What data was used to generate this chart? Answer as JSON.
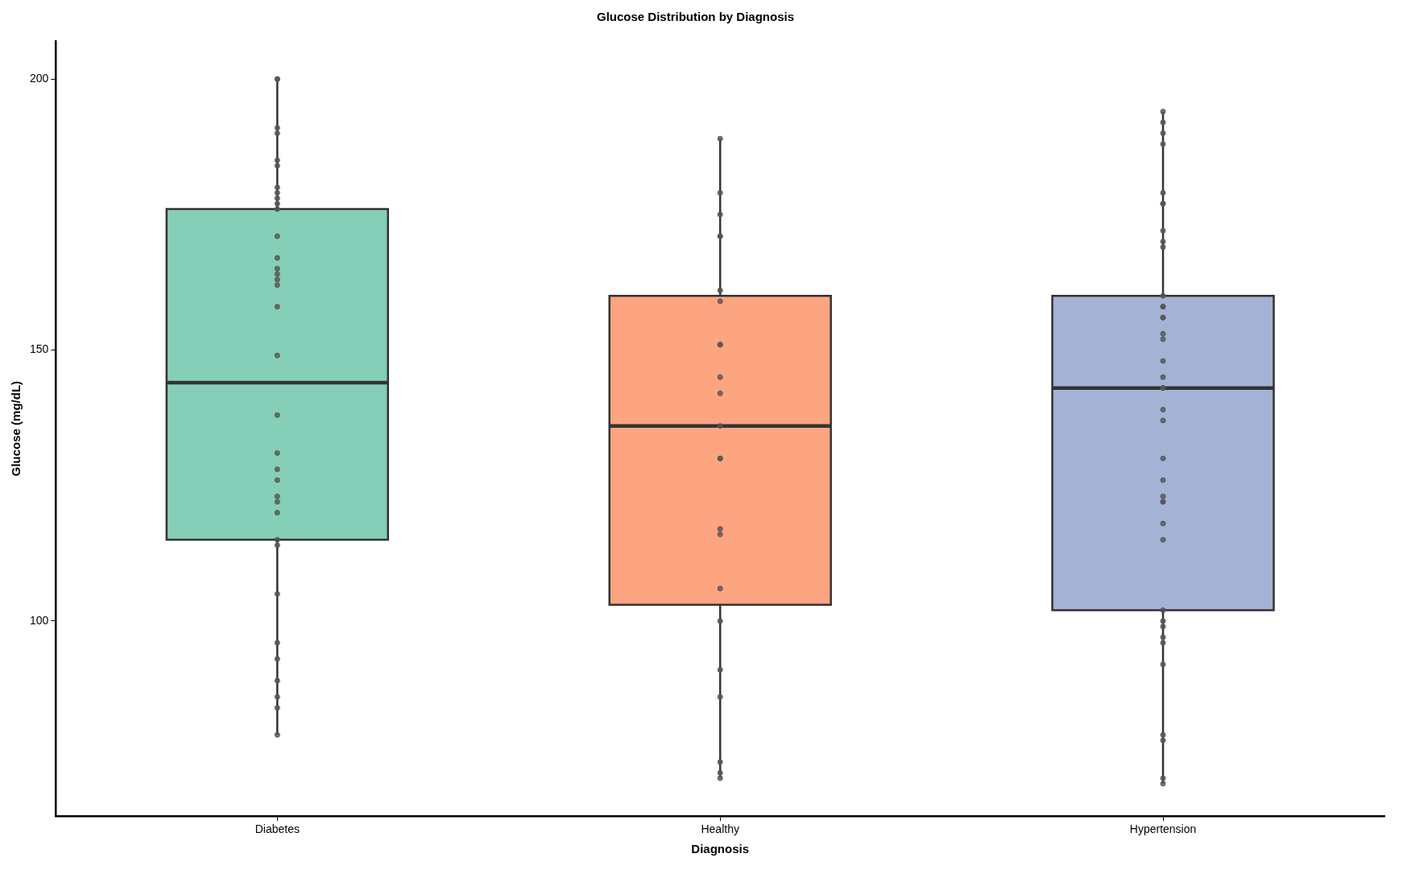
{
  "chart_data": {
    "type": "box",
    "title": "Glucose Distribution by Diagnosis",
    "xlabel": "Diagnosis",
    "ylabel": "Glucose (mg/dL)",
    "categories": [
      "Diabetes",
      "Healthy",
      "Hypertension"
    ],
    "colors": [
      "#85ceb7",
      "#fda481",
      "#a4b3d5"
    ],
    "boxes": [
      {
        "low": 79,
        "q1": 115,
        "median": 144,
        "q3": 176,
        "high": 200
      },
      {
        "low": 71,
        "q1": 103,
        "median": 136,
        "q3": 160,
        "high": 189
      },
      {
        "low": 70,
        "q1": 102,
        "median": 143,
        "q3": 160,
        "high": 194
      }
    ],
    "ylim": [
      64,
      207
    ],
    "yticks": [
      100,
      150,
      200
    ],
    "series": [
      {
        "type": "scatter",
        "color": "#555555",
        "marker": "circle",
        "x": [
          "Diabetes",
          "Diabetes",
          "Diabetes",
          "Diabetes",
          "Diabetes",
          "Diabetes",
          "Diabetes",
          "Diabetes",
          "Diabetes",
          "Diabetes",
          "Diabetes",
          "Diabetes",
          "Diabetes",
          "Diabetes",
          "Diabetes",
          "Diabetes",
          "Diabetes",
          "Diabetes",
          "Diabetes",
          "Diabetes",
          "Diabetes",
          "Diabetes",
          "Diabetes",
          "Diabetes",
          "Diabetes",
          "Diabetes",
          "Diabetes",
          "Diabetes",
          "Diabetes",
          "Diabetes",
          "Diabetes",
          "Diabetes",
          "Diabetes",
          "Diabetes",
          "Diabetes",
          "Healthy",
          "Healthy",
          "Healthy",
          "Healthy",
          "Healthy",
          "Healthy",
          "Healthy",
          "Healthy",
          "Healthy",
          "Healthy",
          "Healthy",
          "Healthy",
          "Healthy",
          "Healthy",
          "Healthy",
          "Healthy",
          "Healthy",
          "Healthy",
          "Healthy",
          "Healthy",
          "Healthy",
          "Healthy",
          "Healthy",
          "Hypertension",
          "Hypertension",
          "Hypertension",
          "Hypertension",
          "Hypertension",
          "Hypertension",
          "Hypertension",
          "Hypertension",
          "Hypertension",
          "Hypertension",
          "Hypertension",
          "Hypertension",
          "Hypertension",
          "Hypertension",
          "Hypertension",
          "Hypertension",
          "Hypertension",
          "Hypertension",
          "Hypertension",
          "Hypertension",
          "Hypertension",
          "Hypertension",
          "Hypertension",
          "Hypertension",
          "Hypertension",
          "Hypertension",
          "Hypertension",
          "Hypertension",
          "Hypertension",
          "Hypertension",
          "Hypertension",
          "Hypertension",
          "Hypertension",
          "Hypertension",
          "Hypertension",
          "Hypertension",
          "Hypertension",
          "Hypertension",
          "Hypertension",
          "Hypertension"
        ],
        "values": [
          200,
          200,
          191,
          190,
          185,
          184,
          180,
          179,
          178,
          177,
          176,
          171,
          167,
          165,
          164,
          163,
          162,
          158,
          149,
          138,
          131,
          128,
          126,
          123,
          122,
          120,
          115,
          114,
          105,
          96,
          93,
          89,
          86,
          84,
          79,
          189,
          179,
          175,
          171,
          171,
          161,
          159,
          151,
          151,
          145,
          142,
          136,
          130,
          130,
          117,
          116,
          106,
          100,
          91,
          86,
          74,
          72,
          71,
          194,
          192,
          190,
          188,
          177,
          177,
          179,
          172,
          170,
          169,
          160,
          158,
          158,
          156,
          156,
          153,
          152,
          148,
          145,
          143,
          143,
          139,
          137,
          130,
          126,
          122,
          122,
          123,
          118,
          115,
          102,
          100,
          99,
          96,
          97,
          92,
          79,
          78,
          71,
          70
        ]
      }
    ]
  }
}
